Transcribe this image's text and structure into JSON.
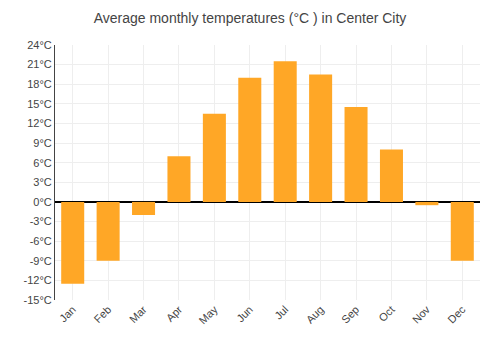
{
  "chart_data": {
    "type": "bar",
    "title": "Average monthly temperatures (°C ) in Center City",
    "categories": [
      "Jan",
      "Feb",
      "Mar",
      "Apr",
      "May",
      "Jun",
      "Jul",
      "Aug",
      "Sep",
      "Oct",
      "Nov",
      "Dec"
    ],
    "values": [
      -12.5,
      -9.0,
      -2.0,
      7.0,
      13.5,
      19.0,
      21.5,
      19.5,
      14.5,
      8.0,
      -0.5,
      -9.0
    ],
    "color": "#FFA726",
    "ylim": [
      -15,
      24
    ],
    "yticks": [
      {
        "value": -15,
        "label": "-15°C"
      },
      {
        "value": -12,
        "label": "-12°C"
      },
      {
        "value": -9,
        "label": "-9°C"
      },
      {
        "value": -6,
        "label": "-6°C"
      },
      {
        "value": -3,
        "label": "-3°C"
      },
      {
        "value": 0,
        "label": "0°C"
      },
      {
        "value": 3,
        "label": "3°C"
      },
      {
        "value": 6,
        "label": "6°C"
      },
      {
        "value": 9,
        "label": "9°C"
      },
      {
        "value": 12,
        "label": "12°C"
      },
      {
        "value": 15,
        "label": "15°C"
      },
      {
        "value": 18,
        "label": "18°C"
      },
      {
        "value": 21,
        "label": "21°C"
      },
      {
        "value": 24,
        "label": "24°C"
      }
    ],
    "grid": true
  }
}
